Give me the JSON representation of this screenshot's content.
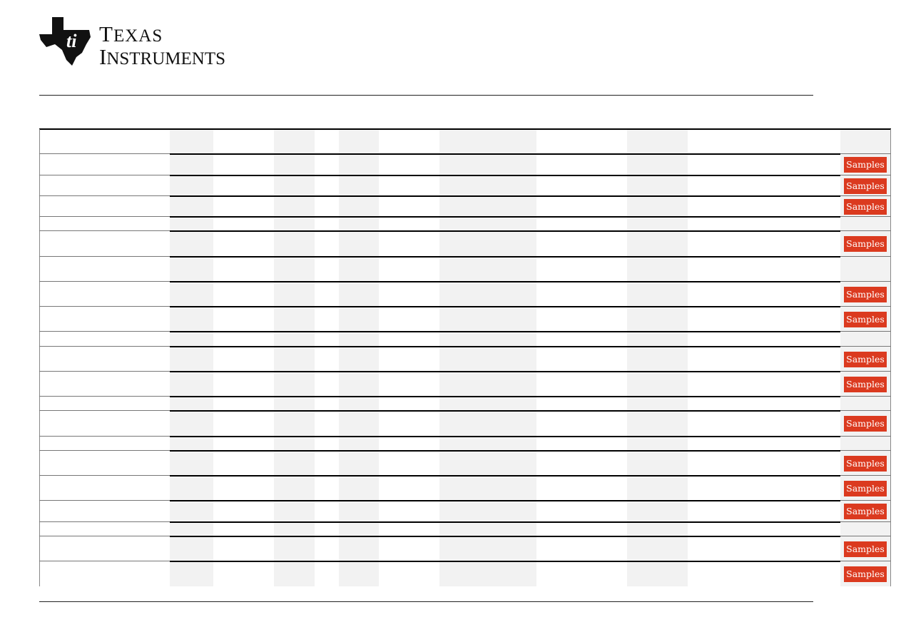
{
  "logo": {
    "line1": "Texas",
    "line2": "Instruments"
  },
  "table": {
    "rows": [
      {
        "samples": true
      },
      {
        "samples": true
      },
      {
        "samples": true
      },
      {
        "samples": false
      },
      {
        "samples": true
      },
      {
        "samples": false
      },
      {
        "samples": true
      },
      {
        "samples": true
      },
      {
        "samples": false
      },
      {
        "samples": true
      },
      {
        "samples": true
      },
      {
        "samples": false
      },
      {
        "samples": true
      },
      {
        "samples": false
      },
      {
        "samples": true
      },
      {
        "samples": true
      },
      {
        "samples": true
      },
      {
        "samples": false
      },
      {
        "samples": true
      },
      {
        "samples": true
      }
    ],
    "samples_label": "Samples"
  },
  "colors": {
    "samples_button": "#db3a1f",
    "shaded_column": "#f2f2f2"
  }
}
